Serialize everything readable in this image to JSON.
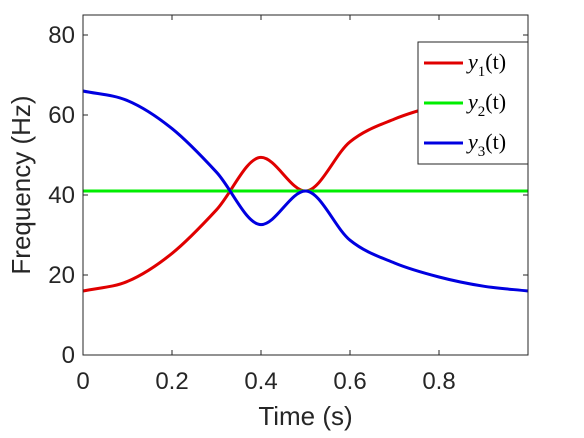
{
  "chart_data": {
    "type": "line",
    "xlabel": "Time (s)",
    "ylabel": "Frequency (Hz)",
    "xlim": [
      0,
      1
    ],
    "ylim": [
      0,
      85
    ],
    "xticks": [
      0,
      0.2,
      0.4,
      0.6,
      0.8
    ],
    "xtick_labels": [
      "0",
      "0.2",
      "0.4",
      "0.6",
      "0.8"
    ],
    "yticks": [
      0,
      20,
      40,
      60,
      80
    ],
    "ytick_labels": [
      "0",
      "20",
      "40",
      "60",
      "80"
    ],
    "grid": false,
    "legend_position": "top-right",
    "series": [
      {
        "name": "y1(t)",
        "label_base": "y",
        "label_sub": "1",
        "label_suffix": "(t)",
        "color": "#e00000",
        "x": [
          0,
          0.1,
          0.2,
          0.3,
          0.4,
          0.5,
          0.6,
          0.7,
          0.8,
          0.9,
          1.0
        ],
        "y": [
          16.0,
          18.4,
          25.4,
          36.3,
          49.4,
          41.0,
          53.3,
          59.0,
          62.5,
          64.8,
          66.0
        ]
      },
      {
        "name": "y2(t)",
        "label_base": "y",
        "label_sub": "2",
        "label_suffix": "(t)",
        "color": "#00ee00",
        "x": [
          0,
          1.0
        ],
        "y": [
          41.0,
          41.0
        ]
      },
      {
        "name": "y3(t)",
        "label_base": "y",
        "label_sub": "3",
        "label_suffix": "(t)",
        "color": "#0000e0",
        "x": [
          0,
          0.1,
          0.2,
          0.3,
          0.4,
          0.5,
          0.6,
          0.7,
          0.8,
          0.9,
          1.0
        ],
        "y": [
          66.0,
          63.6,
          56.6,
          45.7,
          32.6,
          41.0,
          28.7,
          23.0,
          19.5,
          17.2,
          16.0
        ]
      }
    ]
  }
}
